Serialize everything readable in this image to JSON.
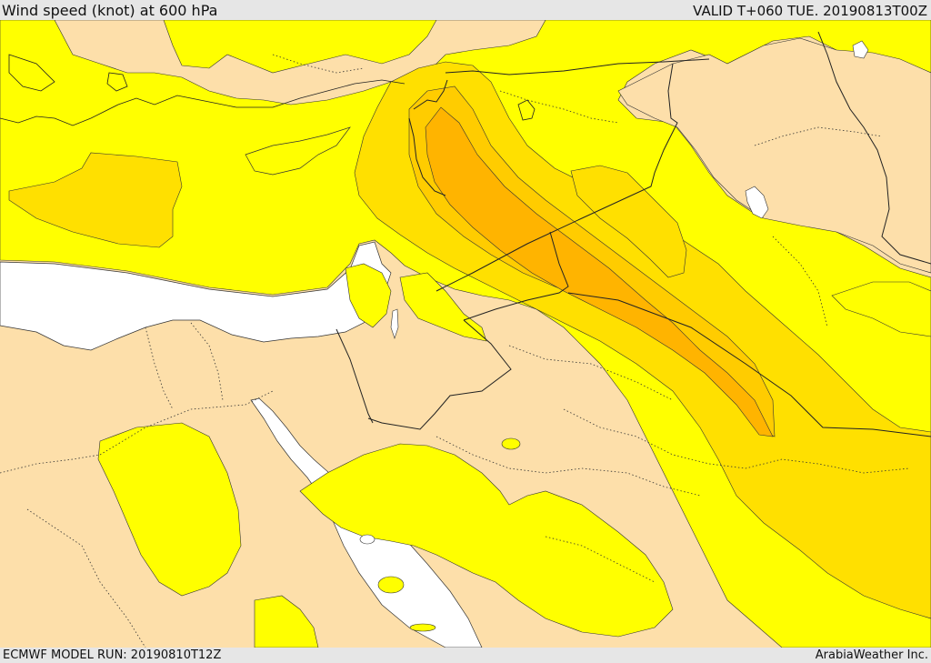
{
  "header": {
    "title": "Wind speed (knot) at 600 hPa",
    "valid_time": "VALID T+060 TUE. 20190813T00Z"
  },
  "footer": {
    "model_run": "ECMWF MODEL RUN: 20190810T12Z",
    "credit": "ArabiaWeather Inc."
  },
  "colors": {
    "land": "#fddfaa",
    "sea": "#ffffff",
    "wind_low": "#ffff00",
    "wind_mid": "#ffe000",
    "wind_high": "#ffcc00",
    "wind_higher": "#ffb400"
  }
}
